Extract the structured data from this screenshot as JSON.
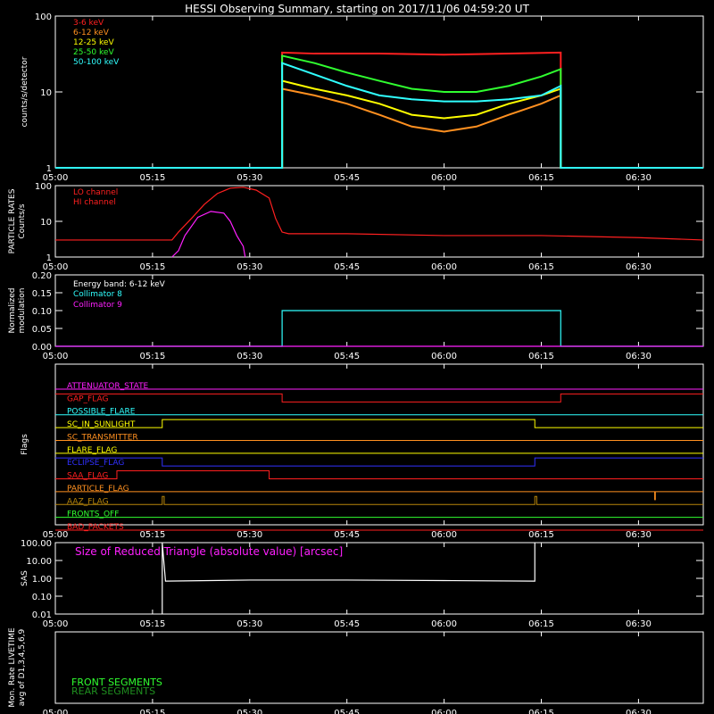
{
  "title": "HESSI Observing Summary, starting on 2017/11/06 04:59:20 UT",
  "x_axis": {
    "ticks": [
      "05:00",
      "05:15",
      "05:30",
      "05:45",
      "06:00",
      "06:15",
      "06:30"
    ],
    "tick_minutes": [
      0,
      15,
      30,
      45,
      60,
      75,
      90
    ],
    "range_minutes": [
      0,
      100
    ]
  },
  "chart_data": [
    {
      "type": "line",
      "name": "count_rates",
      "ylabel": "counts/s/detector",
      "yscale": "log",
      "ylim": [
        1,
        100
      ],
      "y_ticks": [
        "1",
        "10",
        "100"
      ],
      "y_tick_values": [
        1,
        10,
        100
      ],
      "legend_placement": "top-left",
      "series": [
        {
          "name": "3-6 keV",
          "color": "#ff2020",
          "x": [
            0,
            35,
            35,
            40,
            50,
            60,
            70,
            78,
            78,
            100
          ],
          "y": [
            1,
            1,
            33,
            32,
            32,
            31,
            32,
            33,
            1,
            1
          ]
        },
        {
          "name": "6-12 keV",
          "color": "#ff9020",
          "x": [
            0,
            35,
            35,
            40,
            45,
            50,
            55,
            60,
            65,
            70,
            75,
            78,
            78,
            100
          ],
          "y": [
            1,
            1,
            11,
            9,
            7,
            5,
            3.5,
            3,
            3.5,
            5,
            7,
            9,
            1,
            1
          ]
        },
        {
          "name": "12-25 keV",
          "color": "#ffff00",
          "x": [
            0,
            35,
            35,
            40,
            45,
            50,
            55,
            60,
            65,
            70,
            75,
            78,
            78,
            100
          ],
          "y": [
            1,
            1,
            14,
            11,
            9,
            7,
            5,
            4.5,
            5,
            7,
            9,
            11,
            1,
            1
          ]
        },
        {
          "name": "25-50 keV",
          "color": "#30ff30",
          "x": [
            0,
            35,
            35,
            40,
            45,
            50,
            55,
            60,
            65,
            70,
            75,
            78,
            78,
            100
          ],
          "y": [
            1,
            1,
            30,
            24,
            18,
            14,
            11,
            10,
            10,
            12,
            16,
            20,
            1,
            1
          ]
        },
        {
          "name": "50-100 keV",
          "color": "#30ffff",
          "x": [
            0,
            35,
            35,
            40,
            45,
            50,
            55,
            60,
            65,
            70,
            75,
            78,
            78,
            100
          ],
          "y": [
            1,
            1,
            24,
            17,
            12,
            9,
            8,
            7.5,
            7.5,
            8,
            9,
            12,
            1,
            1
          ]
        }
      ]
    },
    {
      "type": "line",
      "name": "particle_rates",
      "ylabel": "PARTICLE RATES\nCounts/s",
      "yscale": "log",
      "ylim": [
        1,
        100
      ],
      "y_ticks": [
        "1",
        "10",
        "100"
      ],
      "y_tick_values": [
        1,
        10,
        100
      ],
      "legend_placement": "top-left",
      "series": [
        {
          "name": "LO channel",
          "color": "#ff2020",
          "x": [
            0,
            18,
            19,
            21,
            23,
            25,
            27,
            29,
            31,
            33,
            34,
            35,
            36,
            45,
            60,
            75,
            90,
            100
          ],
          "y": [
            3,
            3,
            5,
            12,
            30,
            60,
            85,
            90,
            75,
            45,
            12,
            5,
            4.5,
            4.5,
            4,
            4,
            3.5,
            3
          ]
        },
        {
          "name": "HI channel",
          "color": "#ff20ff",
          "x": [
            18,
            19,
            20,
            22,
            24,
            26,
            27,
            28,
            29,
            29.3
          ],
          "y": [
            1,
            1.5,
            4,
            13,
            19,
            17,
            10,
            4,
            2,
            1
          ]
        }
      ]
    },
    {
      "type": "line",
      "name": "modulation",
      "ylabel": "Normalized\nmodulation",
      "ylim": [
        0,
        0.2
      ],
      "y_ticks": [
        "0.00",
        "0.05",
        "0.10",
        "0.15",
        "0.20"
      ],
      "y_tick_values": [
        0,
        0.05,
        0.1,
        0.15,
        0.2
      ],
      "annotation": "Energy band: 6-12 keV",
      "series": [
        {
          "name": "Collimator 8",
          "color": "#30ffff",
          "x": [
            0,
            35,
            35,
            78,
            78,
            100
          ],
          "y": [
            0,
            0,
            0.1,
            0.1,
            0,
            0
          ]
        },
        {
          "name": "Collimator 9",
          "color": "#ff20ff",
          "x": [
            0,
            100
          ],
          "y": [
            0,
            0
          ]
        }
      ]
    },
    {
      "type": "line",
      "name": "flags",
      "ylabel": "Flags",
      "series": [
        {
          "name": "ATTENUATOR_STATE",
          "color": "#ff20ff",
          "x": [
            0,
            100
          ],
          "y": [
            0,
            0
          ]
        },
        {
          "name": "GAP_FLAG",
          "color": "#ff2020",
          "x": [
            0,
            35,
            35,
            78,
            78,
            100
          ],
          "y": [
            1,
            1,
            0,
            0,
            1,
            1
          ]
        },
        {
          "name": "POSSIBLE_FLARE",
          "color": "#30ffff",
          "x": [
            0,
            100
          ],
          "y": [
            0,
            0
          ]
        },
        {
          "name": "SC_IN_SUNLIGHT",
          "color": "#ffff00",
          "x": [
            0,
            16.5,
            16.5,
            74,
            74,
            100
          ],
          "y": [
            0,
            0,
            1,
            1,
            0,
            0
          ]
        },
        {
          "name": "SC_TRANSMITTER",
          "color": "#ff9020",
          "x": [
            0,
            100
          ],
          "y": [
            0,
            0
          ]
        },
        {
          "name": "FLARE_FLAG",
          "color": "#ffff00",
          "x": [
            0,
            100
          ],
          "y": [
            0,
            0
          ]
        },
        {
          "name": "ECLIPSE_FLAG",
          "color": "#3030ff",
          "x": [
            0,
            16.5,
            16.5,
            74,
            74,
            100
          ],
          "y": [
            1,
            1,
            0,
            0,
            1,
            1
          ]
        },
        {
          "name": "SAA_FLAG",
          "color": "#ff2020",
          "x": [
            0,
            9.5,
            9.5,
            33,
            33,
            100
          ],
          "y": [
            0,
            0,
            1,
            1,
            0,
            0
          ]
        },
        {
          "name": "PARTICLE_FLAG",
          "color": "#ff9020",
          "x": [
            0,
            92.5,
            92.5,
            92.6,
            92.6,
            100
          ],
          "y": [
            0,
            0,
            -1,
            -1,
            0,
            0
          ]
        },
        {
          "name": "AAZ_FLAG",
          "color": "#b8860b",
          "x": [
            0,
            16.5,
            16.5,
            16.8,
            16.8,
            74,
            74,
            74.3,
            74.3,
            100
          ],
          "y": [
            0,
            0,
            1,
            1,
            0,
            0,
            1,
            1,
            0,
            0
          ]
        },
        {
          "name": "FRONTS_OFF",
          "color": "#30ff30",
          "x": [
            0,
            100
          ],
          "y": [
            0,
            0
          ]
        },
        {
          "name": "BAD_PACKETS",
          "color": "#ff2020",
          "x": [
            0,
            100
          ],
          "y": [
            0,
            0
          ]
        }
      ]
    },
    {
      "type": "line",
      "name": "sas",
      "ylabel": "SAS",
      "yscale": "log",
      "ylim": [
        0.01,
        100
      ],
      "y_ticks": [
        "0.01",
        "0.10",
        "1.00",
        "10.00",
        "100.00"
      ],
      "y_tick_values": [
        0.01,
        0.1,
        1,
        10,
        100
      ],
      "annotation": "Size of Reduced Triangle (absolute value) [arcsec]",
      "series": [
        {
          "name": "Size of Reduced Triangle (absolute value) [arcsec]",
          "color": "#ffffff",
          "x": [
            16.5,
            16.5,
            17,
            30,
            45,
            60,
            74,
            74
          ],
          "y": [
            0.01,
            100,
            0.7,
            0.8,
            0.8,
            0.75,
            0.7,
            100
          ]
        }
      ]
    },
    {
      "type": "line",
      "name": "monitor_rate",
      "ylabel": "Mon. Rate LIVETIME\navg of D1,3,4,5,6,9",
      "legend_placement": "bottom-left",
      "series": [
        {
          "name": "FRONT SEGMENTS",
          "color": "#30ff30",
          "x": [],
          "y": []
        },
        {
          "name": "REAR SEGMENTS",
          "color": "#1f8f1f",
          "x": [],
          "y": []
        }
      ]
    }
  ]
}
